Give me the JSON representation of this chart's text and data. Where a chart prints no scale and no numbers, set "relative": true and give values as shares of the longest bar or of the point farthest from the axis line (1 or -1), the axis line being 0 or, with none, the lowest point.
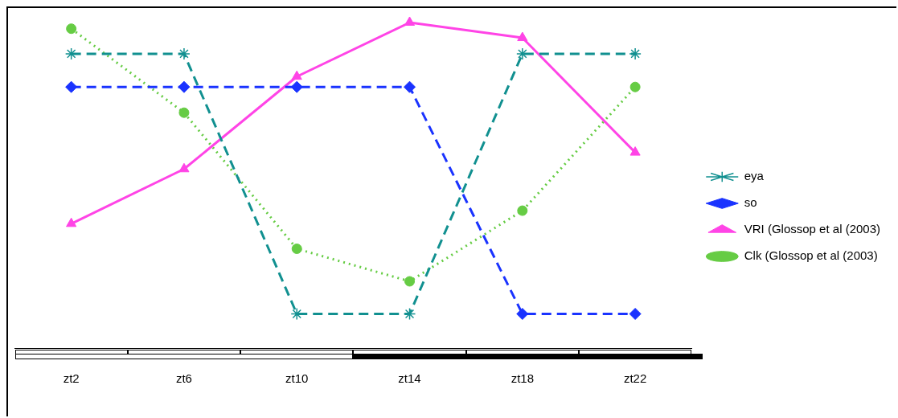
{
  "chart_data": {
    "type": "line",
    "relative": true,
    "categories": [
      "zt2",
      "zt6",
      "zt10",
      "zt14",
      "zt18",
      "zt22"
    ],
    "legend": "right",
    "grid": false,
    "series": [
      {
        "name": "eya",
        "color": "#119090",
        "marker": "cross",
        "line_style": "dashed",
        "values": [
          0.904,
          0.904,
          0.105,
          0.105,
          0.904,
          0.904
        ]
      },
      {
        "name": "so",
        "color": "#1a33ff",
        "marker": "diamond",
        "line_style": "dashed",
        "values": [
          0.802,
          0.802,
          0.802,
          0.802,
          0.105,
          0.105
        ]
      },
      {
        "name": "VRI (Glossop et al (2003)",
        "color": "#ff44e6",
        "marker": "triangle",
        "line_style": "solid",
        "values": [
          0.382,
          0.55,
          0.834,
          1,
          0.953,
          0.601
        ]
      },
      {
        "name": "Clk (Glossop et al (2003)",
        "color": "#66cc44",
        "marker": "circle",
        "line_style": "dotted",
        "values": [
          0.981,
          0.723,
          0.305,
          0.205,
          0.422,
          0.802
        ]
      }
    ]
  }
}
